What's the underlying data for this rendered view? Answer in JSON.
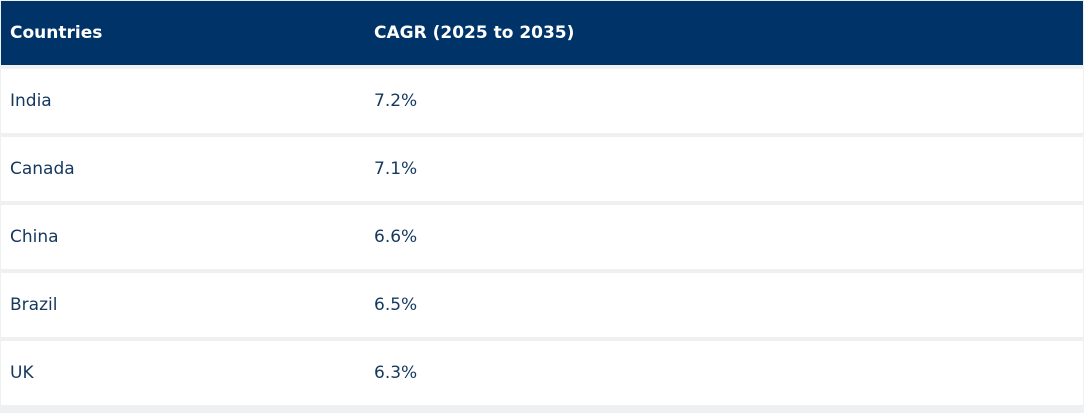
{
  "table": {
    "headers": {
      "country": "Countries",
      "cagr": "CAGR (2025 to 2035)"
    },
    "rows": [
      {
        "country": "India",
        "cagr": "7.2%"
      },
      {
        "country": "Canada",
        "cagr": "7.1%"
      },
      {
        "country": "China",
        "cagr": "6.6%"
      },
      {
        "country": "Brazil",
        "cagr": "6.5%"
      },
      {
        "country": "UK",
        "cagr": "6.3%"
      }
    ]
  },
  "colors": {
    "header_background": "#003468",
    "header_text": "#ffffff",
    "row_text": "#14385e",
    "row_divider": "#eef0f2"
  }
}
